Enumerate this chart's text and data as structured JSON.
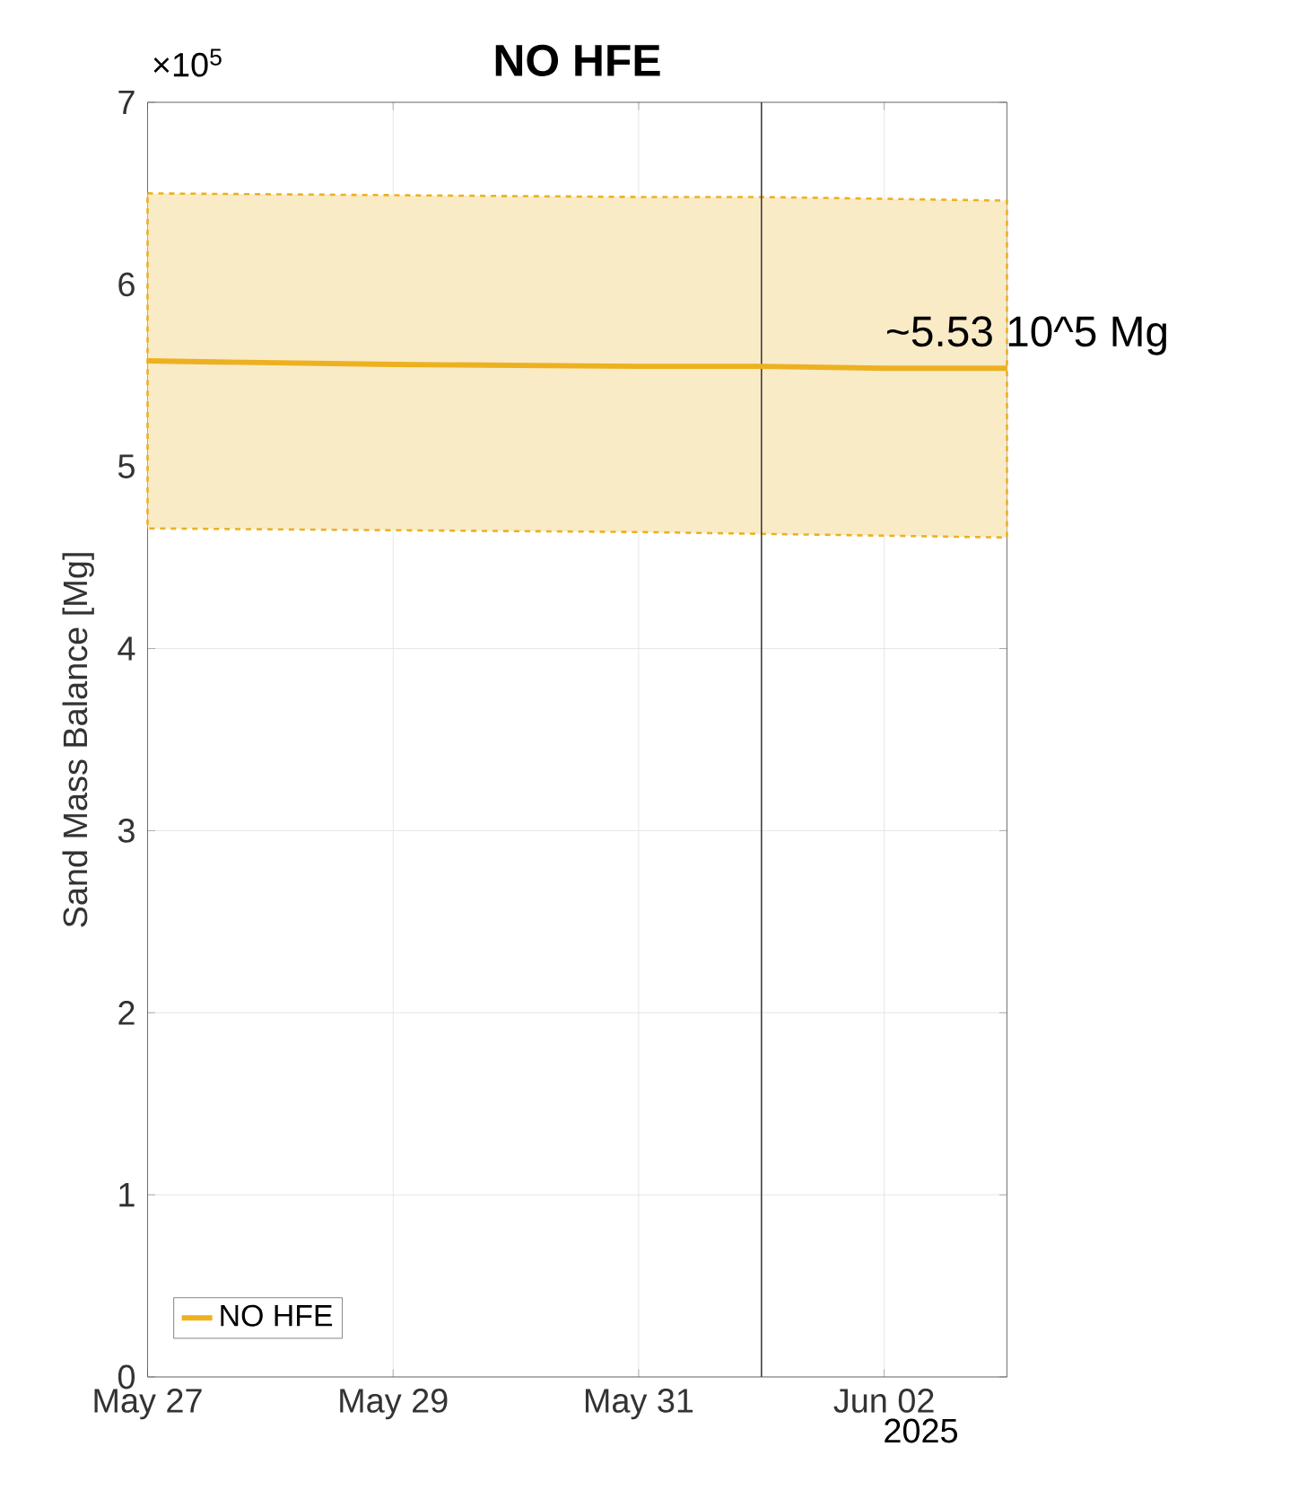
{
  "chart_data": {
    "type": "line",
    "title": "NO HFE",
    "ylabel": "Sand Mass Balance [Mg]",
    "x": [
      "2025-05-27",
      "2025-05-29",
      "2025-05-31",
      "2025-06-01",
      "2025-06-02",
      "2025-06-03"
    ],
    "series": [
      {
        "name": "NO HFE",
        "color": "#edb120",
        "values": [
          5.58,
          5.56,
          5.55,
          5.55,
          5.54,
          5.54
        ],
        "lower": [
          4.66,
          4.65,
          4.64,
          4.63,
          4.62,
          4.61
        ],
        "upper": [
          6.5,
          6.49,
          6.48,
          6.48,
          6.47,
          6.46
        ]
      }
    ],
    "xlim": [
      "2025-05-27",
      "2025-06-03"
    ],
    "xticks": [
      {
        "value": "2025-05-27",
        "label": "May 27"
      },
      {
        "value": "2025-05-29",
        "label": "May 29"
      },
      {
        "value": "2025-05-31",
        "label": "May 31"
      },
      {
        "value": "2025-06-02",
        "label": "Jun 02"
      }
    ],
    "ylim": [
      0,
      7
    ],
    "yticks": [
      0,
      1,
      2,
      3,
      4,
      5,
      6,
      7
    ],
    "ref_lines": [
      {
        "axis": "x",
        "value": "2025-06-01",
        "color": "#404040"
      }
    ],
    "annotations": [
      "×10$^{5}$",
      "~5.53 10^5 Mg",
      "2025"
    ],
    "grid": true,
    "legend": "bottom left",
    "line_style": "solid"
  }
}
